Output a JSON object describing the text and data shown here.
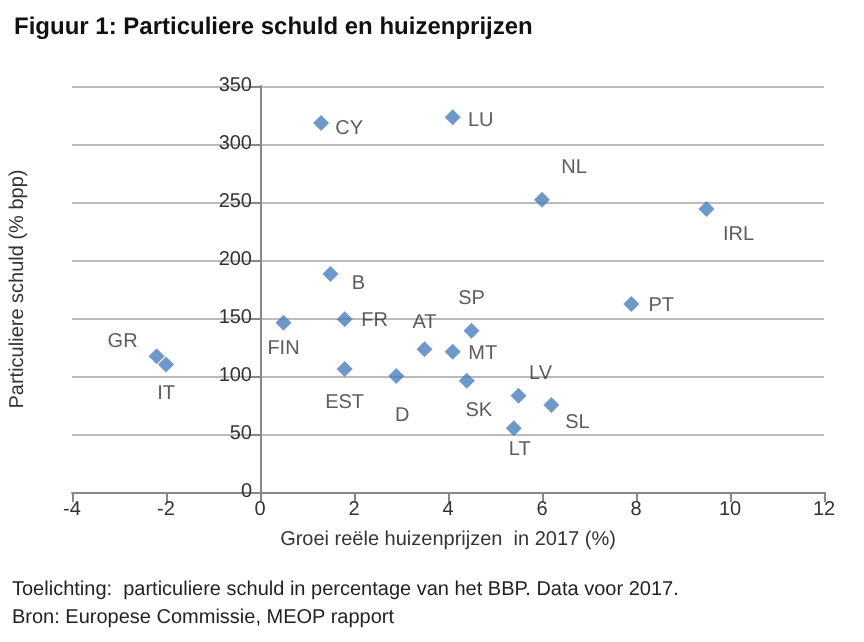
{
  "chart_data": {
    "type": "scatter",
    "title": "Figuur 1: Particuliere schuld en huizenprijzen",
    "xlabel": "Groei reële huizenprijzen  in 2017 (%)",
    "ylabel": "Particuliere schuld (% bpp)",
    "x": [
      1.3,
      4.1,
      6.0,
      9.5,
      1.5,
      0.5,
      1.8,
      7.9,
      -2.2,
      -2.0,
      3.5,
      4.5,
      4.1,
      1.8,
      2.9,
      4.4,
      5.5,
      6.2,
      5.4
    ],
    "values": [
      318,
      323,
      252,
      244,
      188,
      146,
      149,
      162,
      117,
      110,
      123,
      139,
      121,
      106,
      100,
      96,
      83,
      75,
      55
    ],
    "color": "#4a7ebb",
    "marker": "diamond",
    "grid": "y",
    "xlim": [
      -4,
      12
    ],
    "xticks": [
      -4,
      -2,
      0,
      2,
      4,
      6,
      8,
      10,
      12
    ],
    "ylim": [
      0,
      350
    ],
    "yticks": [
      0,
      50,
      100,
      150,
      200,
      250,
      300,
      350
    ],
    "annotations": [
      {
        "text": "CY",
        "x": 1.3,
        "y": 318
      },
      {
        "text": "LU",
        "x": 4.1,
        "y": 323
      },
      {
        "text": "NL",
        "x": 6.0,
        "y": 252
      },
      {
        "text": "IRL",
        "x": 9.5,
        "y": 244
      },
      {
        "text": "B",
        "x": 1.5,
        "y": 188
      },
      {
        "text": "FIN",
        "x": 0.5,
        "y": 146
      },
      {
        "text": "FR",
        "x": 1.8,
        "y": 149
      },
      {
        "text": "PT",
        "x": 7.9,
        "y": 162
      },
      {
        "text": "GR",
        "x": -2.2,
        "y": 117
      },
      {
        "text": "IT",
        "x": -2.0,
        "y": 110
      },
      {
        "text": "AT",
        "x": 3.5,
        "y": 123
      },
      {
        "text": "SP",
        "x": 4.5,
        "y": 139
      },
      {
        "text": "MT",
        "x": 4.1,
        "y": 121
      },
      {
        "text": "EST",
        "x": 1.8,
        "y": 106
      },
      {
        "text": "D",
        "x": 2.9,
        "y": 100
      },
      {
        "text": "SK",
        "x": 4.4,
        "y": 96
      },
      {
        "text": "LV",
        "x": 5.5,
        "y": 83
      },
      {
        "text": "SL",
        "x": 6.2,
        "y": 75
      },
      {
        "text": "LT",
        "x": 5.4,
        "y": 55
      },
      "Toelichting:  particuliere schuld in percentage van het BBP. Data voor 2017.",
      "Bron: Europese Commissie, MEOP rapport"
    ]
  }
}
